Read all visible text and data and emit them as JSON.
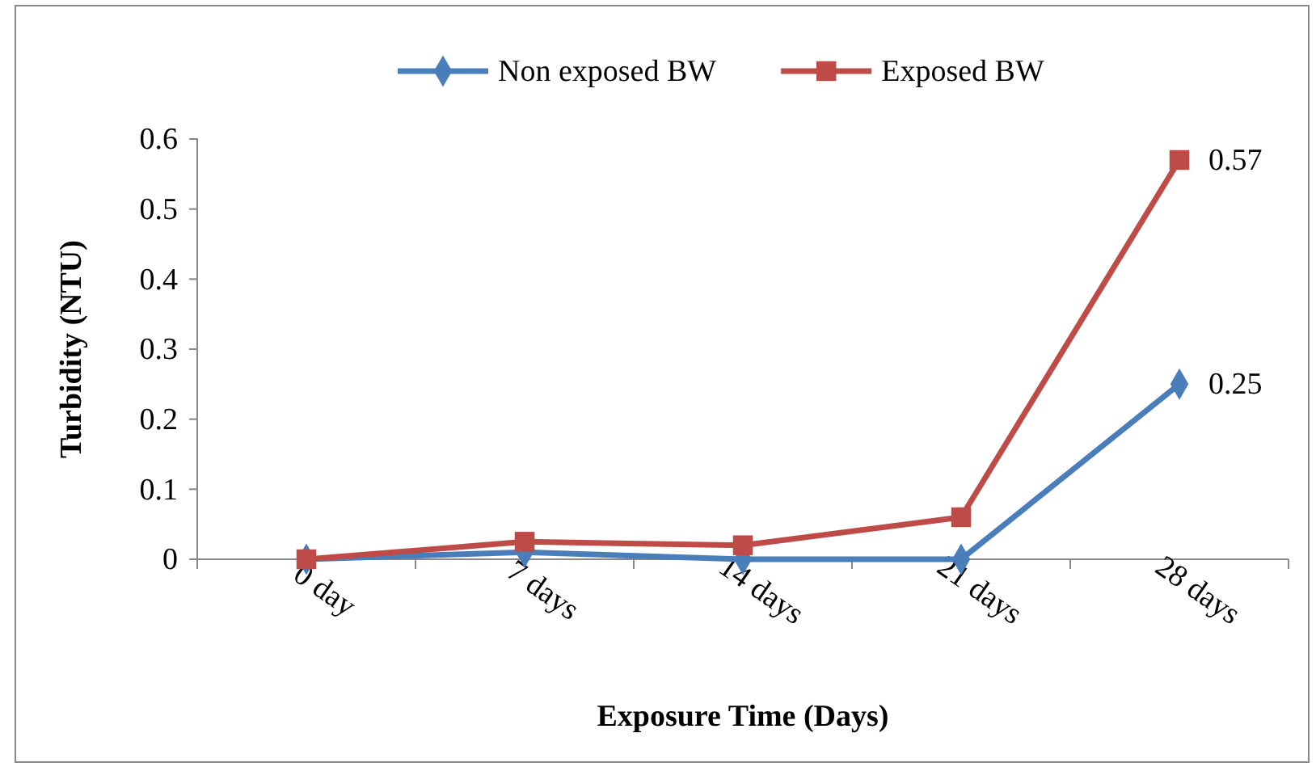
{
  "chart_data": {
    "type": "line",
    "xlabel": "Exposure Time (Days)",
    "ylabel": "Turbidity (NTU)",
    "categories": [
      "0 day",
      "7 days",
      "14 days",
      "21 days",
      "28 days"
    ],
    "series": [
      {
        "name": "Non exposed BW",
        "color": "#4a7ebb",
        "marker": "diamond",
        "values": [
          0,
          0.01,
          0,
          0,
          0.25
        ],
        "value_labels": [
          null,
          null,
          null,
          null,
          "0.25"
        ]
      },
      {
        "name": "Exposed BW",
        "color": "#be4b48",
        "marker": "square",
        "values": [
          0,
          0.025,
          0.02,
          0.06,
          0.57
        ],
        "value_labels": [
          null,
          null,
          null,
          null,
          "0.57"
        ]
      }
    ],
    "ylim": [
      0,
      0.6
    ],
    "yticks": [
      0,
      0.1,
      0.2,
      0.3,
      0.4,
      0.5,
      0.6
    ],
    "grid": false,
    "legend": "top",
    "line_style": "solid"
  }
}
